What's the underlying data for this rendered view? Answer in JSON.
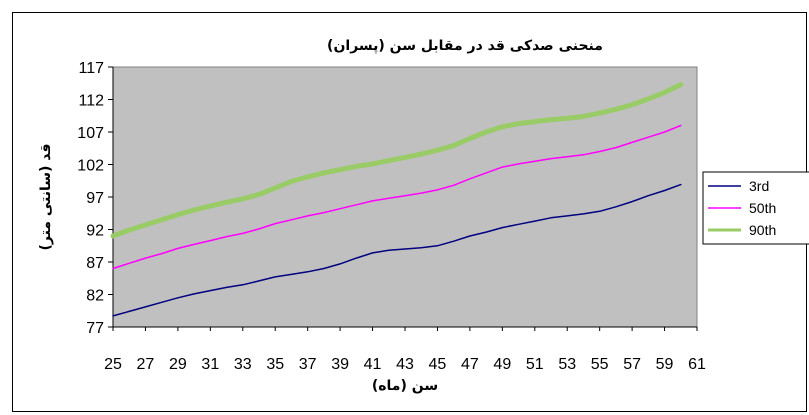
{
  "chart_data": {
    "type": "line",
    "title": "منحنی صدکی قد در مقابل سن (پسران)",
    "xlabel": "سن (ماه)",
    "ylabel": "قد (سانتی متر)",
    "xlim": [
      25,
      61
    ],
    "ylim": [
      77,
      117
    ],
    "xticks": [
      "25",
      "27",
      "29",
      "31",
      "33",
      "35",
      "37",
      "39",
      "41",
      "43",
      "45",
      "47",
      "49",
      "51",
      "53",
      "55",
      "57",
      "59",
      "61"
    ],
    "yticks": [
      "77",
      "82",
      "87",
      "92",
      "97",
      "102",
      "107",
      "112",
      "117"
    ],
    "grid": false,
    "legend_position": "right",
    "plot_background": "#C0C0C0",
    "x": [
      25,
      26,
      27,
      28,
      29,
      30,
      31,
      32,
      33,
      34,
      35,
      36,
      37,
      38,
      39,
      40,
      41,
      42,
      43,
      44,
      45,
      46,
      47,
      48,
      49,
      50,
      51,
      52,
      53,
      54,
      55,
      56,
      57,
      58,
      59,
      60
    ],
    "series": [
      {
        "name": "3rd",
        "color": "#000080",
        "width": 1.5,
        "values": [
          78.7,
          79.4,
          80.1,
          80.8,
          81.5,
          82.1,
          82.6,
          83.1,
          83.5,
          84.1,
          84.7,
          85.1,
          85.5,
          86.0,
          86.7,
          87.6,
          88.4,
          88.8,
          89.0,
          89.2,
          89.5,
          90.2,
          91.0,
          91.6,
          92.3,
          92.8,
          93.3,
          93.8,
          94.1,
          94.4,
          94.8,
          95.5,
          96.3,
          97.2,
          98.0,
          98.9
        ]
      },
      {
        "name": "50th",
        "color": "#FF00FF",
        "width": 1.5,
        "values": [
          86.0,
          86.8,
          87.6,
          88.3,
          89.1,
          89.7,
          90.3,
          90.9,
          91.4,
          92.1,
          92.9,
          93.5,
          94.1,
          94.6,
          95.2,
          95.8,
          96.4,
          96.8,
          97.2,
          97.6,
          98.1,
          98.8,
          99.8,
          100.7,
          101.6,
          102.1,
          102.5,
          102.9,
          103.2,
          103.5,
          104.0,
          104.6,
          105.4,
          106.2,
          107.0,
          108.0
        ]
      },
      {
        "name": "90th",
        "color": "#99CC66",
        "width": 5,
        "values": [
          91.0,
          91.9,
          92.7,
          93.5,
          94.3,
          95.0,
          95.6,
          96.2,
          96.7,
          97.4,
          98.4,
          99.4,
          100.1,
          100.7,
          101.2,
          101.7,
          102.1,
          102.6,
          103.1,
          103.6,
          104.2,
          104.9,
          106.0,
          107.0,
          107.8,
          108.3,
          108.6,
          108.9,
          109.1,
          109.4,
          109.9,
          110.5,
          111.2,
          112.1,
          113.1,
          114.3
        ]
      }
    ]
  }
}
